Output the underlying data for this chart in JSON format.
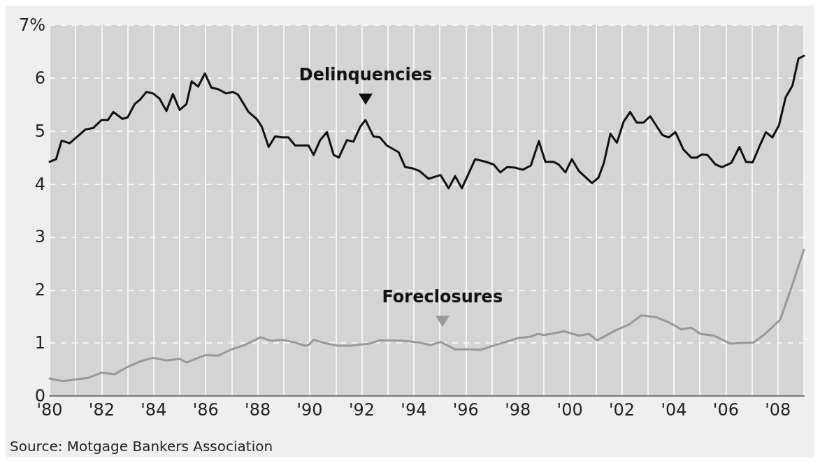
{
  "chart_data": {
    "type": "line",
    "xlim": [
      1980,
      2009
    ],
    "ylim": [
      0,
      7
    ],
    "xticks": [
      {
        "value": 1980,
        "label": "'80"
      },
      {
        "value": 1981,
        "label": null
      },
      {
        "value": 1982,
        "label": "'82"
      },
      {
        "value": 1983,
        "label": null
      },
      {
        "value": 1984,
        "label": "'84"
      },
      {
        "value": 1985,
        "label": null
      },
      {
        "value": 1986,
        "label": "'86"
      },
      {
        "value": 1987,
        "label": null
      },
      {
        "value": 1988,
        "label": "'88"
      },
      {
        "value": 1989,
        "label": null
      },
      {
        "value": 1990,
        "label": "'90"
      },
      {
        "value": 1991,
        "label": null
      },
      {
        "value": 1992,
        "label": "'92"
      },
      {
        "value": 1993,
        "label": null
      },
      {
        "value": 1994,
        "label": "'94"
      },
      {
        "value": 1995,
        "label": null
      },
      {
        "value": 1996,
        "label": "'96"
      },
      {
        "value": 1997,
        "label": null
      },
      {
        "value": 1998,
        "label": "'98"
      },
      {
        "value": 1999,
        "label": null
      },
      {
        "value": 2000,
        "label": "'00"
      },
      {
        "value": 2001,
        "label": null
      },
      {
        "value": 2002,
        "label": "'02"
      },
      {
        "value": 2003,
        "label": null
      },
      {
        "value": 2004,
        "label": "'04"
      },
      {
        "value": 2005,
        "label": null
      },
      {
        "value": 2006,
        "label": "'06"
      },
      {
        "value": 2007,
        "label": null
      },
      {
        "value": 2008,
        "label": "'08"
      }
    ],
    "yticks": [
      0,
      1,
      2,
      3,
      4,
      5,
      6,
      {
        "value": 7,
        "label": "7%"
      }
    ],
    "grid": true,
    "marker": "none",
    "line_style": "solid",
    "series": [
      {
        "color": "#111111",
        "x": [
          1980,
          1980.25,
          1980.46,
          1980.77,
          1981.38,
          1981.68,
          1982.0,
          1982.24,
          1982.45,
          1982.8,
          1983.0,
          1983.27,
          1983.47,
          1983.72,
          1983.98,
          1984.23,
          1984.49,
          1984.74,
          1985.0,
          1985.26,
          1985.46,
          1985.71,
          1985.97,
          1986.22,
          1986.48,
          1986.79,
          1987.04,
          1987.24,
          1987.65,
          1987.96,
          1988.16,
          1988.42,
          1988.67,
          1988.93,
          1989.18,
          1989.44,
          1989.95,
          1990.15,
          1990.4,
          1990.66,
          1990.92,
          1991.12,
          1991.43,
          1991.68,
          1991.94,
          1992.14,
          1992.45,
          1992.7,
          1992.96,
          1993.42,
          1993.67,
          1993.93,
          1994.21,
          1994.57,
          1995.03,
          1995.34,
          1995.59,
          1995.85,
          1996.36,
          1996.77,
          1997.07,
          1997.33,
          1997.58,
          1997.89,
          1998.19,
          1998.5,
          1998.81,
          1999.06,
          1999.37,
          1999.57,
          1999.83,
          2000.08,
          2000.34,
          2000.85,
          2001.1,
          2001.31,
          2001.56,
          2001.81,
          2002.07,
          2002.32,
          2002.57,
          2002.83,
          2003.09,
          2003.55,
          2003.8,
          2004.06,
          2004.37,
          2004.67,
          2004.88,
          2005.08,
          2005.29,
          2005.6,
          2005.85,
          2006.21,
          2006.52,
          2006.77,
          2007.03,
          2007.28,
          2007.54,
          2007.79,
          2008.04,
          2008.3,
          2008.56,
          2008.79,
          2009
        ],
        "values": [
          4.42,
          4.47,
          4.82,
          4.77,
          5.03,
          5.06,
          5.21,
          5.21,
          5.36,
          5.23,
          5.26,
          5.51,
          5.59,
          5.74,
          5.71,
          5.61,
          5.38,
          5.7,
          5.4,
          5.51,
          5.94,
          5.84,
          6.09,
          5.82,
          5.79,
          5.71,
          5.74,
          5.69,
          5.36,
          5.23,
          5.08,
          4.7,
          4.9,
          4.88,
          4.88,
          4.73,
          4.73,
          4.55,
          4.83,
          4.98,
          4.55,
          4.5,
          4.83,
          4.8,
          5.08,
          5.21,
          4.9,
          4.88,
          4.73,
          4.6,
          4.32,
          4.3,
          4.25,
          4.1,
          4.17,
          3.92,
          4.15,
          3.92,
          4.47,
          4.42,
          4.37,
          4.22,
          4.32,
          4.31,
          4.27,
          4.35,
          4.81,
          4.42,
          4.42,
          4.37,
          4.22,
          4.47,
          4.25,
          4.02,
          4.12,
          4.4,
          4.95,
          4.78,
          5.18,
          5.36,
          5.16,
          5.16,
          5.28,
          4.93,
          4.88,
          4.98,
          4.65,
          4.5,
          4.5,
          4.56,
          4.55,
          4.37,
          4.32,
          4.4,
          4.7,
          4.42,
          4.41,
          4.7,
          4.98,
          4.88,
          5.11,
          5.64,
          5.86,
          6.37,
          6.42
        ]
      },
      {
        "color": "#999999",
        "x": [
          1980,
          1980.51,
          1980.97,
          1981.48,
          1982.0,
          1982.5,
          1983.0,
          1983.52,
          1983.98,
          1984.49,
          1985.0,
          1985.26,
          1985.97,
          1986.48,
          1986.99,
          1987.5,
          1988.11,
          1988.52,
          1988.93,
          1989.44,
          1989.8,
          1989.95,
          1990.15,
          1990.56,
          1991.07,
          1991.58,
          1992.3,
          1992.7,
          1993.62,
          1994.21,
          1994.62,
          1995.03,
          1995.59,
          1996.15,
          1996.56,
          1997.07,
          1997.99,
          1998.5,
          1998.76,
          1999.01,
          1999.78,
          2000.34,
          2000.74,
          2001.05,
          2001.77,
          2002.28,
          2002.74,
          2003.3,
          2003.81,
          2004.27,
          2004.67,
          2005.03,
          2005.54,
          2006.15,
          2006.56,
          2007.07,
          2007.48,
          2008.09,
          2008.5,
          2009
        ],
        "values": [
          0.33,
          0.28,
          0.31,
          0.34,
          0.44,
          0.41,
          0.55,
          0.66,
          0.72,
          0.67,
          0.7,
          0.63,
          0.77,
          0.76,
          0.88,
          0.96,
          1.11,
          1.04,
          1.06,
          1.01,
          0.95,
          0.96,
          1.06,
          1.0,
          0.95,
          0.95,
          0.99,
          1.05,
          1.04,
          1.01,
          0.96,
          1.02,
          0.88,
          0.88,
          0.87,
          0.95,
          1.09,
          1.12,
          1.17,
          1.15,
          1.22,
          1.14,
          1.17,
          1.05,
          1.24,
          1.35,
          1.52,
          1.49,
          1.39,
          1.26,
          1.29,
          1.17,
          1.14,
          0.99,
          1.0,
          1.01,
          1.16,
          1.44,
          2.02,
          2.76
        ]
      }
    ],
    "annotations": [
      {
        "text": "Delinquencies",
        "x": 1992.15,
        "y": 5.21
      },
      {
        "text": "Foreclosures",
        "x": 1995.1,
        "y": 1.02
      },
      "Source: Motgage Bankers Association"
    ]
  }
}
